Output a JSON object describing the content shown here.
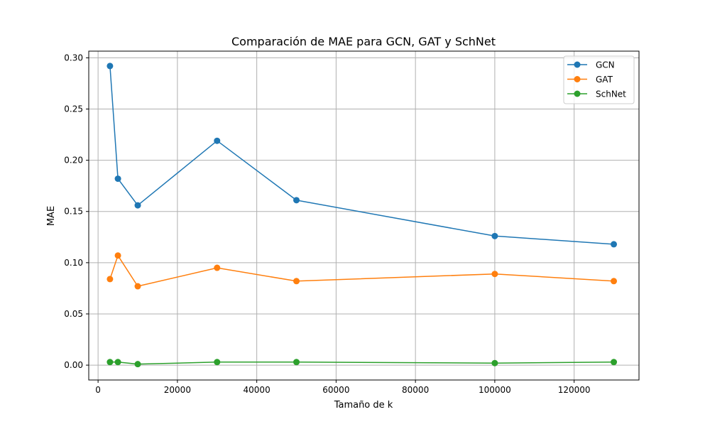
{
  "chart_data": {
    "type": "line",
    "title": "Comparación de MAE para GCN, GAT y SchNet",
    "xlabel": "Tamaño de k",
    "ylabel": "MAE",
    "xlim": [
      -2350,
      136350
    ],
    "ylim": [
      -0.0145,
      0.3065
    ],
    "xticks": [
      0,
      20000,
      40000,
      60000,
      80000,
      100000,
      120000
    ],
    "yticks": [
      0.0,
      0.05,
      0.1,
      0.15,
      0.2,
      0.25,
      0.3
    ],
    "xtick_labels": [
      "0",
      "20000",
      "40000",
      "60000",
      "80000",
      "100000",
      "120000"
    ],
    "ytick_labels": [
      "0.00",
      "0.05",
      "0.10",
      "0.15",
      "0.20",
      "0.25",
      "0.30"
    ],
    "grid": true,
    "legend_position": "top-right",
    "x": [
      3000,
      5000,
      10000,
      30000,
      50000,
      100000,
      130000
    ],
    "series": [
      {
        "name": "GCN",
        "color": "#1f77b4",
        "values": [
          0.292,
          0.182,
          0.156,
          0.219,
          0.161,
          0.126,
          0.118
        ]
      },
      {
        "name": "GAT",
        "color": "#ff7f0e",
        "values": [
          0.084,
          0.107,
          0.077,
          0.095,
          0.082,
          0.089,
          0.082
        ]
      },
      {
        "name": "SchNet",
        "color": "#2ca02c",
        "values": [
          0.003,
          0.003,
          0.001,
          0.003,
          0.003,
          0.002,
          0.003
        ]
      }
    ]
  }
}
